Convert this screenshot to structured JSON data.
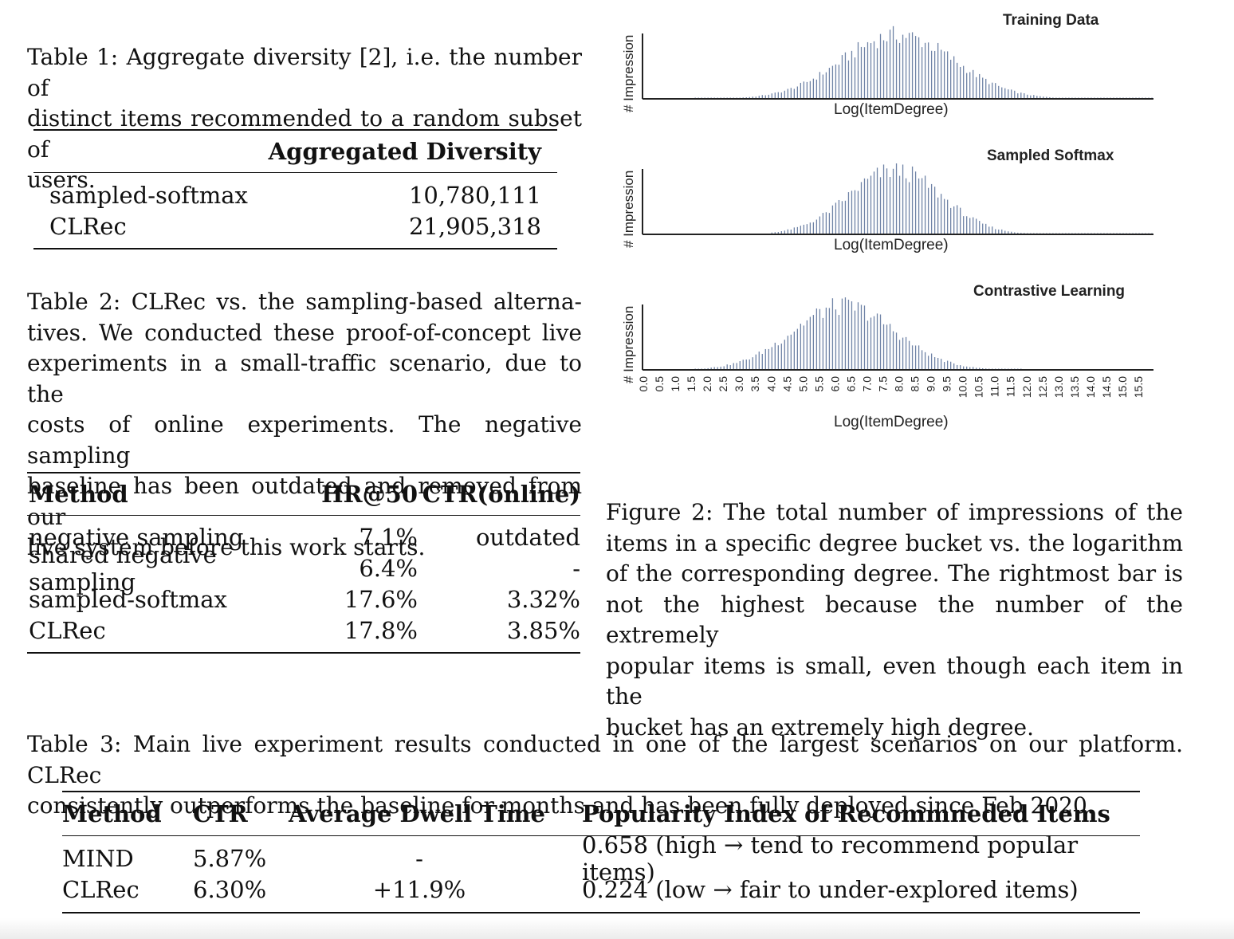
{
  "table1": {
    "caption": [
      "Table 1: Aggregate diversity [2], i.e. the number of",
      "distinct items recommended to a random subset of",
      "users."
    ],
    "header": "Aggregated Diversity",
    "rows": [
      {
        "method": "sampled-softmax",
        "value": "10,780,111"
      },
      {
        "method": "CLRec",
        "value": "21,905,318"
      }
    ]
  },
  "table2": {
    "caption": [
      "Table 2: CLRec vs. the sampling-based alterna-",
      "tives. We conducted these proof-of-concept live",
      "experiments in a small-traffic scenario, due to the",
      "costs of online experiments. The negative sampling",
      "baseline has been outdated and removed from our",
      "live system before this work starts."
    ],
    "headers": [
      "Method",
      "HR@50",
      "CTR(online)"
    ],
    "rows": [
      {
        "method": "negative sampling",
        "hr": "7.1%",
        "ctr": "outdated"
      },
      {
        "method": "shared negative sampling",
        "hr": "6.4%",
        "ctr": "-"
      },
      {
        "method": "sampled-softmax",
        "hr": "17.6%",
        "ctr": "3.32%"
      },
      {
        "method": "CLRec",
        "hr": "17.8%",
        "ctr": "3.85%"
      }
    ]
  },
  "figure2": {
    "caption": [
      "Figure 2: The total number of impressions of the",
      "items in a specific degree bucket vs. the logarithm",
      "of the corresponding degree. The rightmost bar is",
      "not the highest because the number of the extremely",
      "popular items is small, even though each item in the",
      "bucket has an extremely high degree."
    ]
  },
  "table3": {
    "caption": [
      "Table 3: Main live experiment results conducted in one of the largest scenarios on our platform. CLRec",
      "consistently outperforms the baseline for months and has been fully deployed since Feb 2020."
    ],
    "headers": [
      "Method",
      "CTR",
      "Average Dwell Time",
      "Popularity Index of Recommneded Items"
    ],
    "rows": [
      {
        "method": "MIND",
        "ctr": "5.87%",
        "dwell": "-",
        "pop": "0.658 (high → tend to recommend popular items)"
      },
      {
        "method": "CLRec",
        "ctr": "6.30%",
        "dwell": "+11.9%",
        "pop": "0.224 (low → fair to under-explored items)"
      }
    ]
  },
  "chart_data": [
    {
      "type": "bar",
      "title": "Training Data",
      "xlabel": "Log(ItemDegree)",
      "ylabel": "# Impression",
      "xlim": [
        0,
        16
      ],
      "grid": false,
      "color": "#6f83a6",
      "x_ticks": [
        "0.0",
        "0.5",
        "1.0",
        "1.5",
        "2.0",
        "2.5",
        "3.0",
        "3.5",
        "4.0",
        "4.5",
        "5.0",
        "5.5",
        "6.0",
        "6.5",
        "7.0",
        "7.5",
        "8.0",
        "8.5",
        "9.0",
        "9.5",
        "10.0",
        "10.5",
        "11.0",
        "11.5",
        "12.0",
        "12.5",
        "13.0",
        "13.5",
        "14.0",
        "14.5",
        "15.0",
        "15.5"
      ],
      "distribution": {
        "mean": 8.0,
        "std": 1.75,
        "x_min": 1.6,
        "x_max": 16.0,
        "peak": 1.0
      }
    },
    {
      "type": "bar",
      "title": "Sampled Softmax",
      "xlabel": "Log(ItemDegree)",
      "ylabel": "# Impression",
      "xlim": [
        0,
        16
      ],
      "grid": false,
      "color": "#6f83a6",
      "x_ticks": [
        "0.0",
        "0.5",
        "1.0",
        "1.5",
        "2.0",
        "2.5",
        "3.0",
        "3.5",
        "4.0",
        "4.5",
        "5.0",
        "5.5",
        "6.0",
        "6.5",
        "7.0",
        "7.5",
        "8.0",
        "8.5",
        "9.0",
        "9.5",
        "10.0",
        "10.5",
        "11.0",
        "11.5",
        "12.0",
        "12.5",
        "13.0",
        "13.5",
        "14.0",
        "14.5",
        "15.0",
        "15.5"
      ],
      "distribution": {
        "mean": 7.9,
        "std": 1.45,
        "x_min": 4.0,
        "x_max": 16.0,
        "peak": 1.0
      }
    },
    {
      "type": "bar",
      "title": "Contrastive Learning",
      "xlabel": "Log(ItemDegree)",
      "ylabel": "# Impression",
      "xlim": [
        0,
        16
      ],
      "grid": false,
      "color": "#6f83a6",
      "x_ticks": [
        "0.0",
        "0.5",
        "1.0",
        "1.5",
        "2.0",
        "2.5",
        "3.0",
        "3.5",
        "4.0",
        "4.5",
        "5.0",
        "5.5",
        "6.0",
        "6.5",
        "7.0",
        "7.5",
        "8.0",
        "8.5",
        "9.0",
        "9.5",
        "10.0",
        "10.5",
        "11.0",
        "11.5",
        "12.0",
        "12.5",
        "13.0",
        "13.5",
        "14.0",
        "14.5",
        "15.0",
        "15.5"
      ],
      "distribution": {
        "mean": 6.3,
        "std": 1.6,
        "x_min": 1.6,
        "x_max": 11.9,
        "peak": 1.0
      }
    }
  ]
}
